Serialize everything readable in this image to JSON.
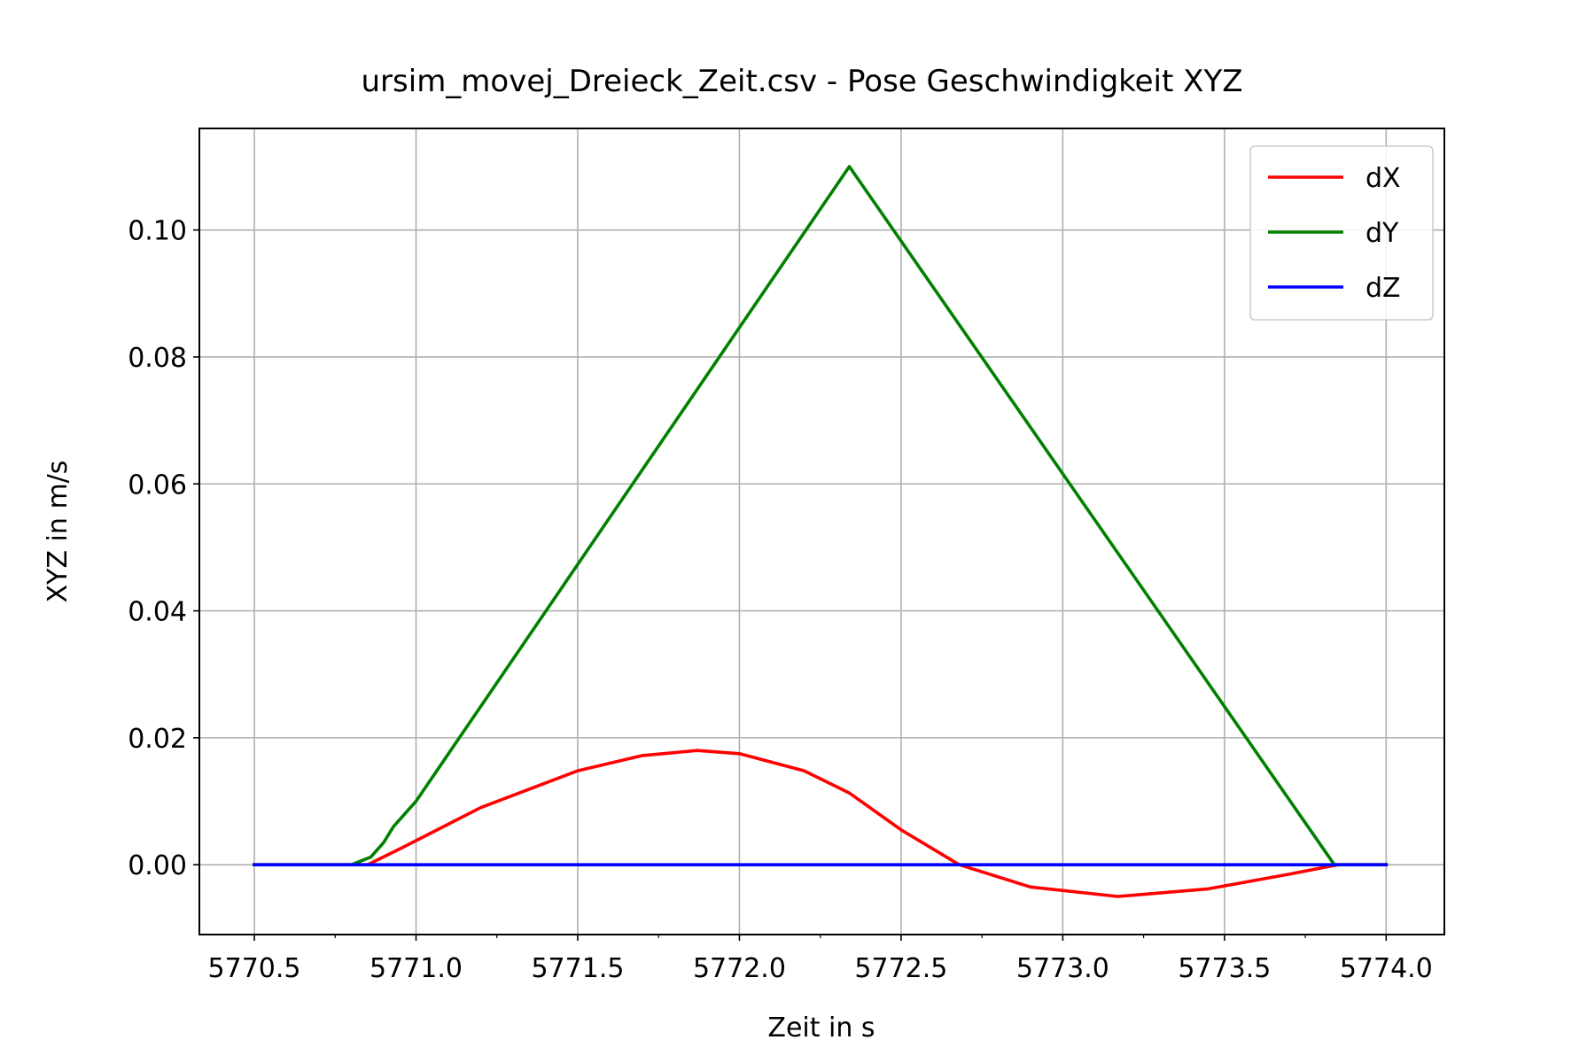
{
  "chart_data": {
    "type": "line",
    "title": "ursim_movej_Dreieck_Zeit.csv - Pose Geschwindigkeit XYZ",
    "xlabel": "Zeit in s",
    "ylabel": "XYZ in m/s",
    "xlim": [
      5770.33,
      5774.18
    ],
    "ylim": [
      -0.011,
      0.116
    ],
    "xticks": [
      5770.5,
      5771.0,
      5771.5,
      5772.0,
      5772.5,
      5773.0,
      5773.5,
      5774.0
    ],
    "xtick_labels": [
      "5770.5",
      "5771.0",
      "5771.5",
      "5772.0",
      "5772.5",
      "5773.0",
      "5773.5",
      "5774.0"
    ],
    "xminor": [
      5770.75,
      5771.25,
      5771.75,
      5772.25,
      5772.75,
      5773.25,
      5773.75
    ],
    "yticks": [
      0.0,
      0.02,
      0.04,
      0.06,
      0.08,
      0.1
    ],
    "ytick_labels": [
      "0.00",
      "0.02",
      "0.04",
      "0.06",
      "0.08",
      "0.10"
    ],
    "grid": true,
    "legend_position": "upper right",
    "series": [
      {
        "name": "dX",
        "color": "#ff0000",
        "x": [
          5770.5,
          5770.85,
          5770.95,
          5771.2,
          5771.5,
          5771.7,
          5771.87,
          5772.0,
          5772.2,
          5772.34,
          5772.5,
          5772.68,
          5772.9,
          5773.17,
          5773.45,
          5773.7,
          5773.85,
          5774.0
        ],
        "y": [
          0.0,
          0.0,
          0.0025,
          0.009,
          0.0148,
          0.0172,
          0.018,
          0.0175,
          0.0148,
          0.0113,
          0.0055,
          0.0,
          -0.0035,
          -0.005,
          -0.0038,
          -0.0015,
          0.0,
          0.0
        ]
      },
      {
        "name": "dY",
        "color": "#008000",
        "x": [
          5770.5,
          5770.8,
          5770.86,
          5770.9,
          5770.93,
          5771.0,
          5772.34,
          5773.84,
          5774.0
        ],
        "y": [
          0.0,
          0.0,
          0.0012,
          0.0035,
          0.006,
          0.01,
          0.11,
          0.0,
          0.0
        ]
      },
      {
        "name": "dZ",
        "color": "#0000ff",
        "x": [
          5770.5,
          5774.0
        ],
        "y": [
          0.0,
          0.0
        ]
      }
    ]
  }
}
